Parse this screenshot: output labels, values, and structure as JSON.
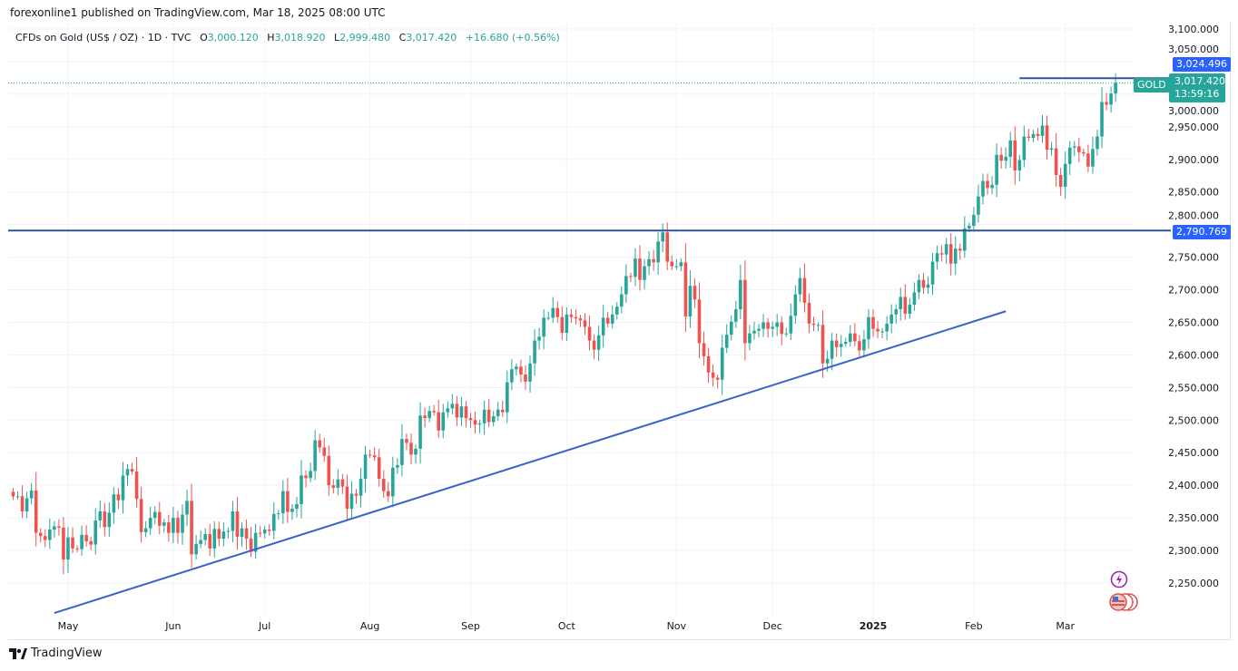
{
  "header": {
    "publish_line": "forexonline1 published on TradingView.com, Mar 18, 2025 08:00 UTC",
    "symbol": "CFDs on Gold (US$ / OZ) · 1D · TVC",
    "o_label": "O",
    "o": "3,000.120",
    "h_label": "H",
    "h": "3,018.920",
    "l_label": "L",
    "l": "2,999.480",
    "c_label": "C",
    "c": "3,017.420",
    "change": "+16.680 (+0.56%)"
  },
  "tags": {
    "resistance_top": "3,024.496",
    "symbol_tag": "GOLD",
    "last_price": "3,017.420",
    "countdown": "13:59:16",
    "resistance_main": "2,790.769"
  },
  "footer": {
    "brand": "TradingView"
  },
  "colors": {
    "up": "#26a69a",
    "down": "#ef5350",
    "trendline": "#3a62c9",
    "hline": "#2f5597",
    "tag_blue": "#2962ff",
    "tag_teal": "#26a69a"
  },
  "chart_data": {
    "type": "candlestick",
    "title": "CFDs on Gold (US$ / OZ) · 1D · TVC",
    "ylim": [
      2200,
      3110
    ],
    "yticks": [
      2250,
      2300,
      2350,
      2400,
      2450,
      2500,
      2550,
      2600,
      2650,
      2700,
      2750,
      2800,
      2850,
      2900,
      2950,
      3000,
      3050,
      3100
    ],
    "ytick_labels": [
      "2,250.000",
      "2,300.000",
      "2,350.000",
      "2,400.000",
      "2,450.000",
      "2,500.000",
      "2,550.000",
      "2,600.000",
      "2,650.000",
      "2,700.000",
      "2,750.000",
      "2,800.000",
      "2,850.000",
      "2,900.000",
      "2,950.000",
      "3,000.000",
      "3,050.000",
      "3,100.000"
    ],
    "xticks": [
      {
        "label": "May",
        "index": 12
      },
      {
        "label": "Jun",
        "index": 35
      },
      {
        "label": "Jul",
        "index": 55
      },
      {
        "label": "Aug",
        "index": 78
      },
      {
        "label": "Sep",
        "index": 100
      },
      {
        "label": "Oct",
        "index": 121
      },
      {
        "label": "Nov",
        "index": 145
      },
      {
        "label": "Dec",
        "index": 166
      },
      {
        "label": "2025",
        "index": 188
      },
      {
        "label": "Feb",
        "index": 210
      },
      {
        "label": "Mar",
        "index": 230
      }
    ],
    "first_open": 2390,
    "closes": [
      2383,
      2383,
      2360,
      2380,
      2392,
      2327,
      2322,
      2316,
      2332,
      2337,
      2335,
      2286,
      2320,
      2303,
      2302,
      2324,
      2314,
      2309,
      2346,
      2360,
      2336,
      2358,
      2386,
      2377,
      2415,
      2425,
      2421,
      2379,
      2328,
      2334,
      2350,
      2359,
      2338,
      2343,
      2327,
      2350,
      2327,
      2355,
      2376,
      2294,
      2310,
      2316,
      2325,
      2303,
      2333,
      2318,
      2329,
      2330,
      2360,
      2321,
      2334,
      2318,
      2298,
      2327,
      2326,
      2332,
      2330,
      2356,
      2357,
      2391,
      2359,
      2364,
      2371,
      2415,
      2411,
      2422,
      2469,
      2458,
      2445,
      2400,
      2396,
      2409,
      2398,
      2364,
      2387,
      2384,
      2410,
      2447,
      2446,
      2443,
      2410,
      2391,
      2383,
      2427,
      2431,
      2471,
      2465,
      2447,
      2456,
      2507,
      2503,
      2514,
      2512,
      2484,
      2512,
      2518,
      2525,
      2504,
      2521,
      2503,
      2500,
      2493,
      2495,
      2516,
      2497,
      2506,
      2516,
      2512,
      2558,
      2578,
      2582,
      2570,
      2559,
      2587,
      2622,
      2628,
      2657,
      2657,
      2672,
      2658,
      2634,
      2662,
      2658,
      2656,
      2653,
      2643,
      2622,
      2608,
      2630,
      2657,
      2648,
      2662,
      2674,
      2693,
      2721,
      2720,
      2748,
      2715,
      2736,
      2747,
      2742,
      2774,
      2788,
      2743,
      2736,
      2736,
      2742,
      2659,
      2706,
      2685,
      2618,
      2598,
      2573,
      2565,
      2562,
      2611,
      2631,
      2651,
      2670,
      2715,
      2618,
      2633,
      2637,
      2640,
      2650,
      2640,
      2643,
      2650,
      2632,
      2633,
      2660,
      2693,
      2718,
      2680,
      2648,
      2646,
      2646,
      2587,
      2594,
      2622,
      2612,
      2617,
      2620,
      2633,
      2621,
      2607,
      2624,
      2658,
      2640,
      2636,
      2636,
      2648,
      2662,
      2670,
      2689,
      2663,
      2677,
      2696,
      2715,
      2703,
      2708,
      2743,
      2756,
      2754,
      2770,
      2740,
      2763,
      2760,
      2794,
      2798,
      2815,
      2843,
      2867,
      2856,
      2861,
      2907,
      2898,
      2904,
      2929,
      2883,
      2899,
      2935,
      2933,
      2939,
      2936,
      2952,
      2915,
      2917,
      2876,
      2858,
      2893,
      2918,
      2920,
      2911,
      2909,
      2889,
      2916,
      2935,
      2988,
      2984,
      3001,
      3017.42
    ],
    "horizontal_lines": [
      {
        "price": 2790.769,
        "from_index": 0,
        "to_index": "end"
      },
      {
        "price": 3024.496,
        "from_index": 220,
        "to_index": "end"
      }
    ],
    "trendline": {
      "from": {
        "index": 9,
        "price": 2204
      },
      "to": {
        "index": 217,
        "price": 2667
      }
    },
    "last_price": 3017.42
  }
}
